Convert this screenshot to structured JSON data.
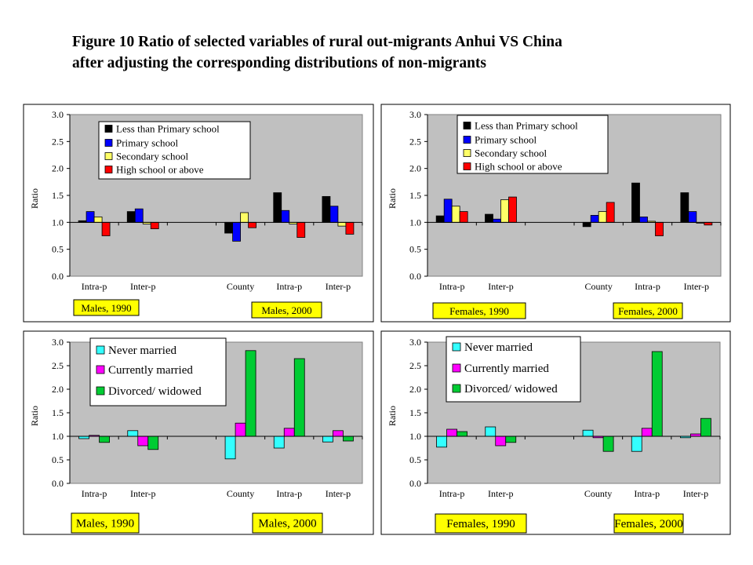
{
  "title": {
    "line1": "Figure 10   Ratio of selected variables of rural out-migrants Anhui  VS China",
    "line2": "after adjusting the corresponding distributions of non-migrants"
  },
  "colors": {
    "plot_bg": "#c0c0c0",
    "frame": "#000000",
    "label_box": "#ffff00",
    "edu": [
      "#000000",
      "#0000ff",
      "#ffff66",
      "#ff0000"
    ],
    "marital": [
      "#33ffff",
      "#ff00ff",
      "#00cc33"
    ]
  },
  "chart_data": [
    {
      "type": "bar",
      "ylabel": "Ratio",
      "ylim": [
        0,
        3
      ],
      "yticks": [
        "0.0",
        "0.5",
        "1.0",
        "1.5",
        "2.0",
        "2.5",
        "3.0"
      ],
      "baseline": 1.0,
      "grid": false,
      "legend_position": "top-center",
      "categories": [
        "Intra-p",
        "Inter-p",
        "",
        "County",
        "Intra-p",
        "Inter-p"
      ],
      "group_labels": [
        "Males, 1990",
        "Males, 2000"
      ],
      "series": [
        {
          "name": "Less than Primary school",
          "values": [
            1.03,
            1.2,
            null,
            0.8,
            1.55,
            1.48
          ]
        },
        {
          "name": "Primary school",
          "values": [
            1.2,
            1.25,
            null,
            0.65,
            1.22,
            1.3
          ]
        },
        {
          "name": "Secondary school",
          "values": [
            1.1,
            0.97,
            null,
            1.18,
            0.97,
            0.93
          ]
        },
        {
          "name": "High school or above",
          "values": [
            0.75,
            0.88,
            null,
            0.9,
            0.72,
            0.78
          ]
        }
      ]
    },
    {
      "type": "bar",
      "ylabel": "Ratio",
      "ylim": [
        0,
        3
      ],
      "yticks": [
        "0.0",
        "0.5",
        "1.0",
        "1.5",
        "2.0",
        "2.5",
        "3.0"
      ],
      "baseline": 1.0,
      "grid": false,
      "legend_position": "top-center",
      "categories": [
        "Intra-p",
        "Inter-p",
        "",
        "County",
        "Intra-p",
        "Inter-p"
      ],
      "group_labels": [
        "Females, 1990",
        "Females, 2000"
      ],
      "series": [
        {
          "name": "Less than Primary school",
          "values": [
            1.12,
            1.15,
            null,
            0.92,
            1.73,
            1.55
          ]
        },
        {
          "name": "Primary school",
          "values": [
            1.43,
            1.06,
            null,
            1.13,
            1.1,
            1.2
          ]
        },
        {
          "name": "Secondary school",
          "values": [
            1.3,
            1.42,
            null,
            1.2,
            1.02,
            1.0
          ]
        },
        {
          "name": "High school or above",
          "values": [
            1.2,
            1.47,
            null,
            1.37,
            0.75,
            0.95
          ]
        }
      ]
    },
    {
      "type": "bar",
      "ylabel": "Ratio",
      "ylim": [
        0,
        3
      ],
      "yticks": [
        "0.0",
        "0.5",
        "1.0",
        "1.5",
        "2.0",
        "2.5",
        "3.0"
      ],
      "baseline": 1.0,
      "grid": false,
      "legend_position": "top-center",
      "categories": [
        "Intra-p",
        "Inter-p",
        "",
        "County",
        "Intra-p",
        "Inter-p"
      ],
      "group_labels": [
        "Males, 1990",
        "Males, 2000"
      ],
      "series": [
        {
          "name": "Never married",
          "values": [
            0.95,
            1.12,
            null,
            0.52,
            0.75,
            0.88
          ]
        },
        {
          "name": "Currently married",
          "values": [
            1.02,
            0.8,
            null,
            1.28,
            1.17,
            1.12
          ]
        },
        {
          "name": "Divorced/ widowed",
          "values": [
            0.87,
            0.72,
            null,
            2.82,
            2.65,
            0.9
          ]
        }
      ]
    },
    {
      "type": "bar",
      "ylabel": "Ratio",
      "ylim": [
        0,
        3
      ],
      "yticks": [
        "0.0",
        "0.5",
        "1.0",
        "1.5",
        "2.0",
        "2.5",
        "3.0"
      ],
      "baseline": 1.0,
      "grid": false,
      "legend_position": "top-left",
      "categories": [
        "Intra-p",
        "Inter-p",
        "",
        "County",
        "Intra-p",
        "Inter-p"
      ],
      "group_labels": [
        "Females, 1990",
        "Females, 2000"
      ],
      "series": [
        {
          "name": "Never married",
          "values": [
            0.77,
            1.2,
            null,
            1.13,
            0.68,
            0.97
          ]
        },
        {
          "name": "Currently married",
          "values": [
            1.15,
            0.8,
            null,
            0.97,
            1.17,
            1.05
          ]
        },
        {
          "name": "Divorced/ widowed",
          "values": [
            1.1,
            0.87,
            null,
            0.68,
            2.8,
            1.38
          ]
        }
      ]
    }
  ]
}
